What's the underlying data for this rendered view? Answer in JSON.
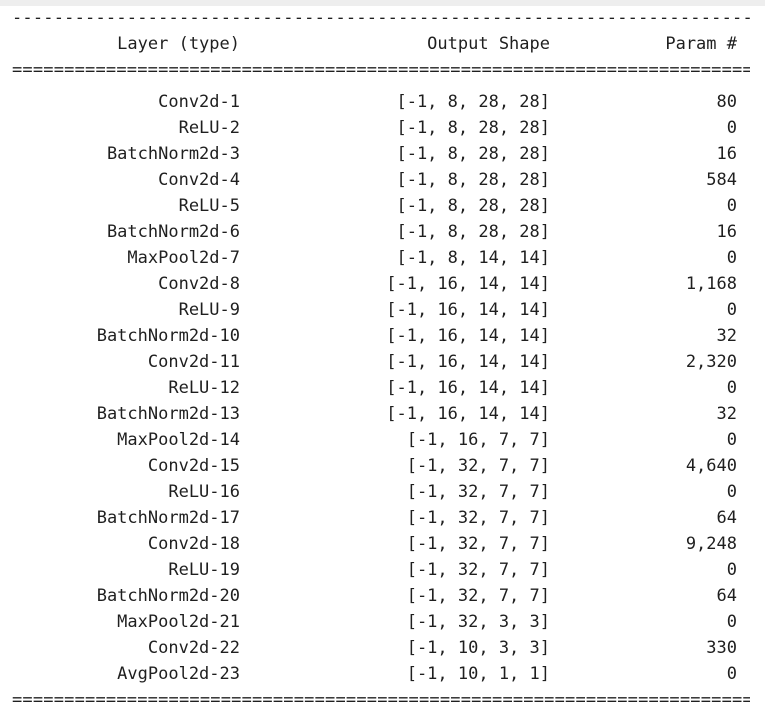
{
  "header": {
    "layer": "Layer (type)",
    "shape": "Output Shape",
    "param": "Param #"
  },
  "rows": [
    {
      "layer": "Conv2d-1",
      "shape": "[-1, 8, 28, 28]",
      "param": "80"
    },
    {
      "layer": "ReLU-2",
      "shape": "[-1, 8, 28, 28]",
      "param": "0"
    },
    {
      "layer": "BatchNorm2d-3",
      "shape": "[-1, 8, 28, 28]",
      "param": "16"
    },
    {
      "layer": "Conv2d-4",
      "shape": "[-1, 8, 28, 28]",
      "param": "584"
    },
    {
      "layer": "ReLU-5",
      "shape": "[-1, 8, 28, 28]",
      "param": "0"
    },
    {
      "layer": "BatchNorm2d-6",
      "shape": "[-1, 8, 28, 28]",
      "param": "16"
    },
    {
      "layer": "MaxPool2d-7",
      "shape": "[-1, 8, 14, 14]",
      "param": "0"
    },
    {
      "layer": "Conv2d-8",
      "shape": "[-1, 16, 14, 14]",
      "param": "1,168"
    },
    {
      "layer": "ReLU-9",
      "shape": "[-1, 16, 14, 14]",
      "param": "0"
    },
    {
      "layer": "BatchNorm2d-10",
      "shape": "[-1, 16, 14, 14]",
      "param": "32"
    },
    {
      "layer": "Conv2d-11",
      "shape": "[-1, 16, 14, 14]",
      "param": "2,320"
    },
    {
      "layer": "ReLU-12",
      "shape": "[-1, 16, 14, 14]",
      "param": "0"
    },
    {
      "layer": "BatchNorm2d-13",
      "shape": "[-1, 16, 14, 14]",
      "param": "32"
    },
    {
      "layer": "MaxPool2d-14",
      "shape": "[-1, 16, 7, 7]",
      "param": "0"
    },
    {
      "layer": "Conv2d-15",
      "shape": "[-1, 32, 7, 7]",
      "param": "4,640"
    },
    {
      "layer": "ReLU-16",
      "shape": "[-1, 32, 7, 7]",
      "param": "0"
    },
    {
      "layer": "BatchNorm2d-17",
      "shape": "[-1, 32, 7, 7]",
      "param": "64"
    },
    {
      "layer": "Conv2d-18",
      "shape": "[-1, 32, 7, 7]",
      "param": "9,248"
    },
    {
      "layer": "ReLU-19",
      "shape": "[-1, 32, 7, 7]",
      "param": "0"
    },
    {
      "layer": "BatchNorm2d-20",
      "shape": "[-1, 32, 7, 7]",
      "param": "64"
    },
    {
      "layer": "MaxPool2d-21",
      "shape": "[-1, 32, 3, 3]",
      "param": "0"
    },
    {
      "layer": "Conv2d-22",
      "shape": "[-1, 10, 3, 3]",
      "param": "330"
    },
    {
      "layer": "AvgPool2d-23",
      "shape": "[-1, 10, 1, 1]",
      "param": "0"
    }
  ]
}
